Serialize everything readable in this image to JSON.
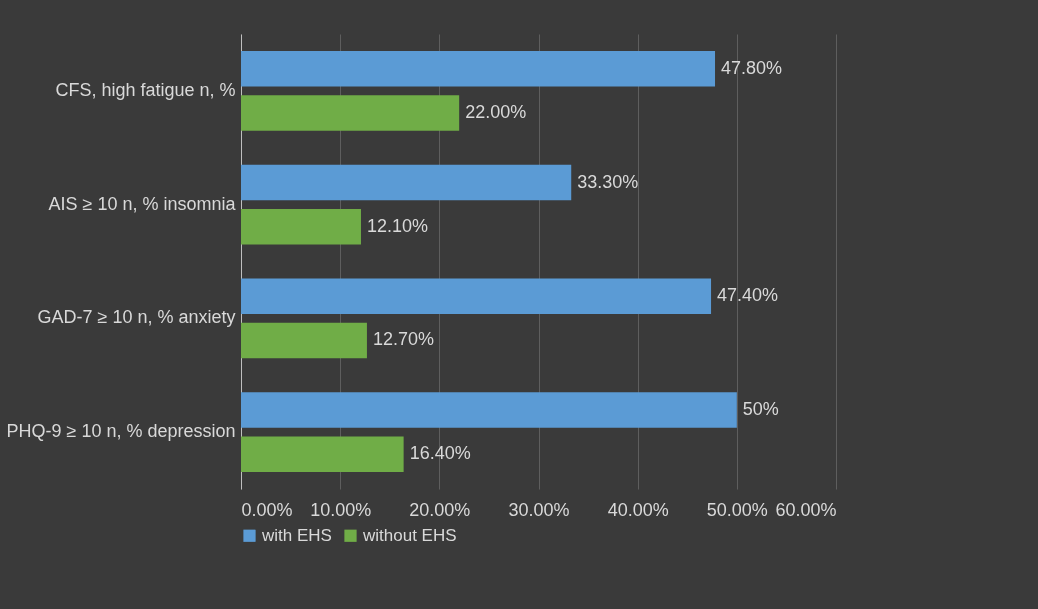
{
  "chart_data": {
    "type": "bar",
    "orientation": "horizontal",
    "categories": [
      "CFS, high fatigue n, %",
      "AIS ≥ 10 n, % insomnia",
      "GAD-7 ≥ 10 n, % anxiety",
      "PHQ-9 ≥ 10 n, % depression"
    ],
    "series": [
      {
        "name": "with EHS",
        "color": "#5b9bd5",
        "values": [
          47.8,
          33.3,
          47.4,
          50
        ],
        "value_labels": [
          "47.80%",
          "33.30%",
          "47.40%",
          "50%"
        ]
      },
      {
        "name": "without EHS",
        "color": "#70ad47",
        "values": [
          22.0,
          12.1,
          12.7,
          16.4
        ],
        "value_labels": [
          "22.00%",
          "12.10%",
          "12.70%",
          "16.40%"
        ]
      }
    ],
    "xlim": [
      0,
      60
    ],
    "xticks": [
      {
        "value": 0,
        "label": "0.00%"
      },
      {
        "value": 10,
        "label": "10.00%"
      },
      {
        "value": 20,
        "label": "20.00%"
      },
      {
        "value": 30,
        "label": "30.00%"
      },
      {
        "value": 40,
        "label": "40.00%"
      },
      {
        "value": 50,
        "label": "50.00%"
      },
      {
        "value": 60,
        "label": "60.00%"
      }
    ],
    "grid": "x",
    "legend": "bottom"
  }
}
